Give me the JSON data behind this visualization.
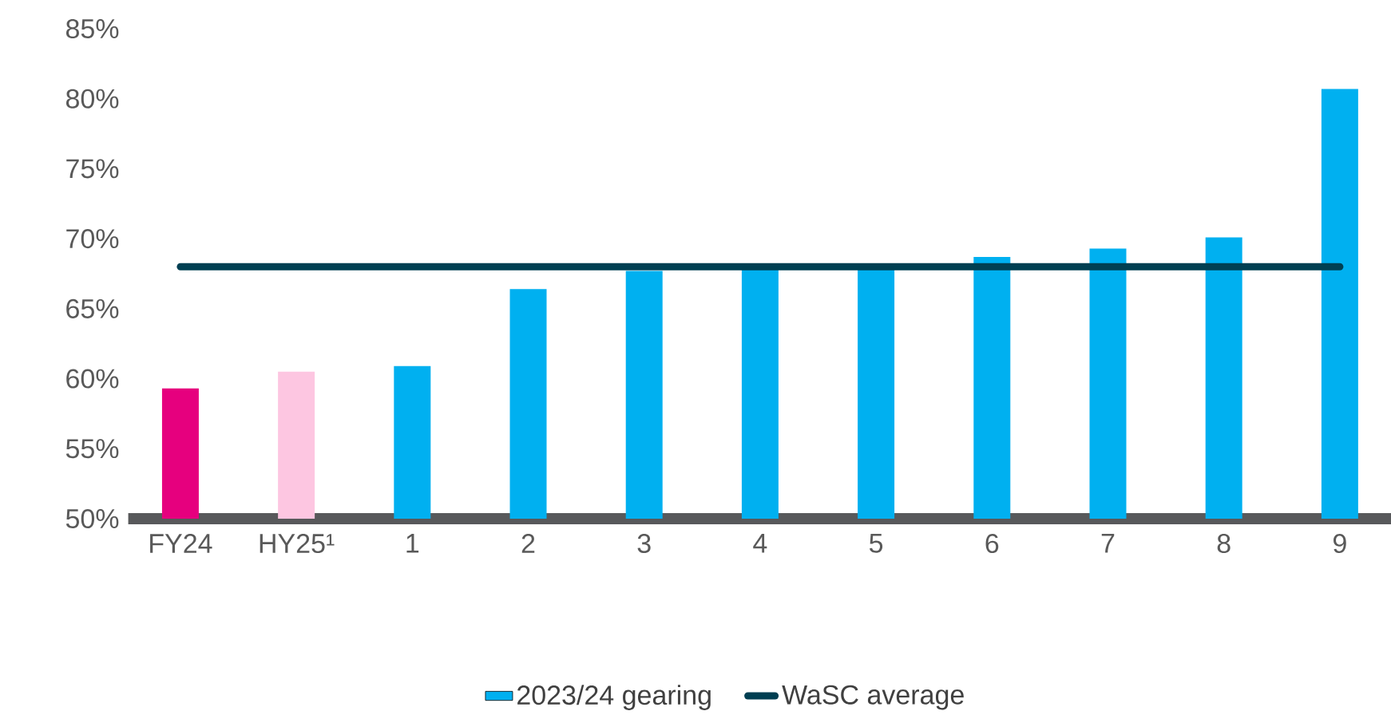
{
  "chart_data": {
    "type": "bar",
    "categories": [
      "FY24",
      "HY25¹",
      "1",
      "2",
      "3",
      "4",
      "5",
      "6",
      "7",
      "8",
      "9"
    ],
    "series": [
      {
        "name": "2023/24 gearing",
        "type": "bar",
        "color": "#00b0f0",
        "colors": [
          "#e6007e",
          "#fdc6e1",
          "#00b0f0",
          "#00b0f0",
          "#00b0f0",
          "#00b0f0",
          "#00b0f0",
          "#00b0f0",
          "#00b0f0",
          "#00b0f0",
          "#00b0f0"
        ],
        "values": [
          59.3,
          60.5,
          60.9,
          66.4,
          67.7,
          67.9,
          67.9,
          68.7,
          69.3,
          70.1,
          80.7
        ]
      },
      {
        "name": "WaSC average",
        "type": "line",
        "color": "#003f52",
        "values": [
          68,
          68,
          68,
          68,
          68,
          68,
          68,
          68,
          68,
          68,
          68
        ]
      }
    ],
    "ylim": [
      50,
      85
    ],
    "yticks": [
      {
        "value": 50,
        "label": "50%"
      },
      {
        "value": 55,
        "label": "55%"
      },
      {
        "value": 60,
        "label": "60%"
      },
      {
        "value": 65,
        "label": "65%"
      },
      {
        "value": 70,
        "label": "70%"
      },
      {
        "value": 75,
        "label": "75%"
      },
      {
        "value": 80,
        "label": "80%"
      },
      {
        "value": 85,
        "label": "85%"
      }
    ],
    "legend": "bottom",
    "grid": false
  }
}
